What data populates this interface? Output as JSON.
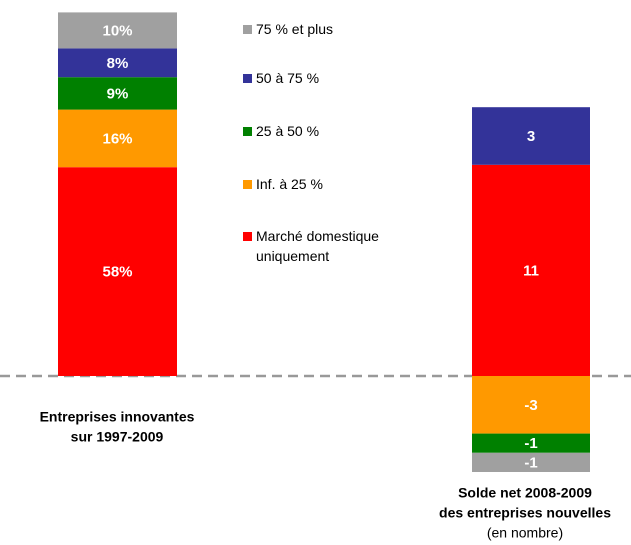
{
  "chart_data": {
    "type": "stacked_bar",
    "categories": [
      [
        "Entreprises innovantes",
        "sur 1997-2009"
      ],
      [
        "Solde net 2008-2009",
        "des entreprises nouvelles"
      ]
    ],
    "category_note": "(en nombre)",
    "series": [
      {
        "name": "Marché domestique uniquement",
        "color": "#ff0000",
        "values": [
          58,
          11
        ],
        "value_labels": [
          "58%",
          "11"
        ]
      },
      {
        "name": "Inf. à 25 %",
        "color": "#ff9900",
        "values": [
          16,
          -3
        ],
        "value_labels": [
          "16%",
          "-3"
        ]
      },
      {
        "name": "25 à 50 %",
        "color": "#008000",
        "values": [
          9,
          -1
        ],
        "value_labels": [
          "9%",
          "-1"
        ]
      },
      {
        "name": "50 à 75 %",
        "color": "#333399",
        "values": [
          8,
          3
        ],
        "value_labels": [
          "8%",
          "3"
        ]
      },
      {
        "name": "75 % et plus",
        "color": "#a0a0a0",
        "values": [
          10,
          -1
        ],
        "value_labels": [
          "10%",
          "-1"
        ]
      }
    ]
  }
}
